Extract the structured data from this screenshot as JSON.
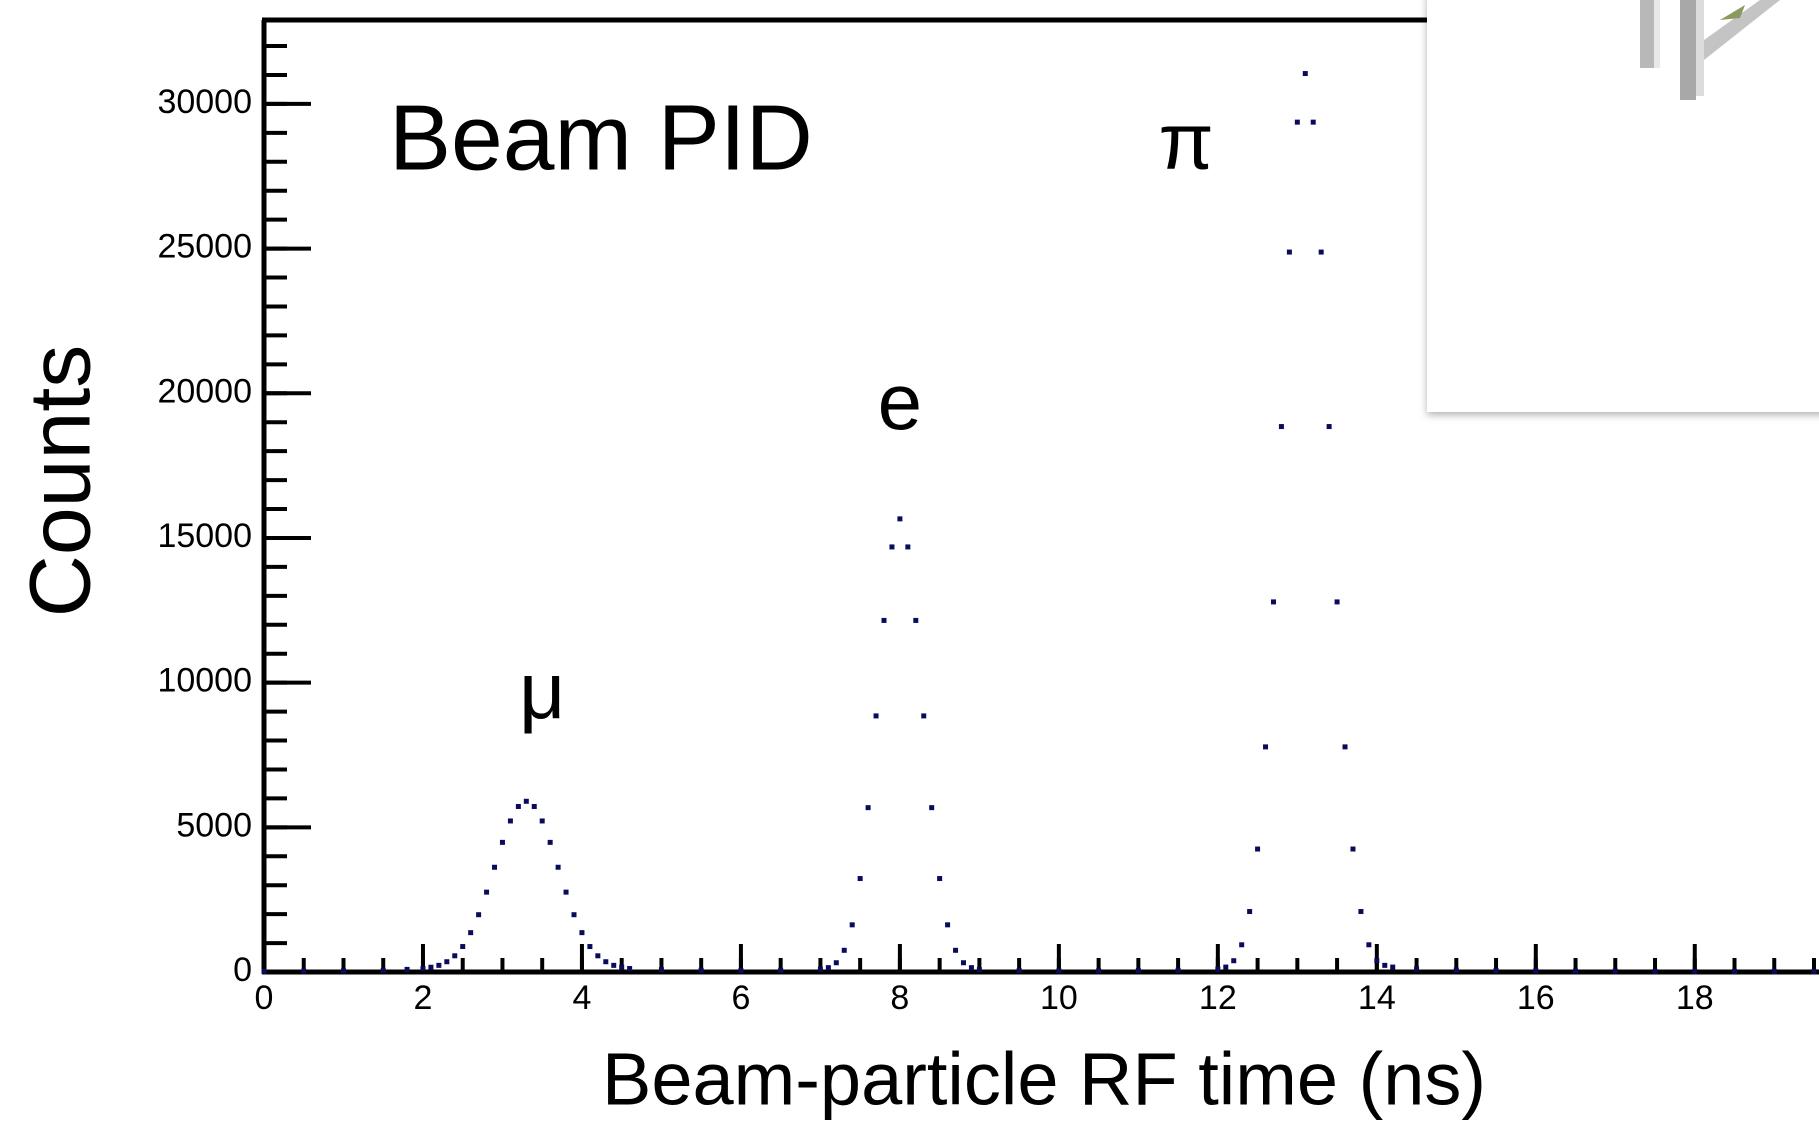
{
  "chart_data": {
    "type": "scatter",
    "title": "Beam PID",
    "x_label": "Beam-particle RF time (ns)",
    "y_label": "Counts",
    "annotations": [
      {
        "text": "μ",
        "x": 3.5,
        "y": 9500
      },
      {
        "text": "e",
        "x": 8.0,
        "y": 19500
      },
      {
        "text": "π",
        "x": 11.6,
        "y": 28500
      }
    ],
    "x": [
      0,
      0.5,
      1,
      1.5,
      1.8,
      2.0,
      2.1,
      2.2,
      2.3,
      2.4,
      2.5,
      2.6,
      2.7,
      2.8,
      2.9,
      3.0,
      3.1,
      3.2,
      3.3,
      3.4,
      3.5,
      3.6,
      3.7,
      3.8,
      3.9,
      4.0,
      4.1,
      4.2,
      4.3,
      4.4,
      4.5,
      4.6,
      5.0,
      5.5,
      6.0,
      6.5,
      7.0,
      7.1,
      7.2,
      7.3,
      7.4,
      7.5,
      7.6,
      7.7,
      7.8,
      7.9,
      8.0,
      8.1,
      8.2,
      8.3,
      8.4,
      8.5,
      8.6,
      8.7,
      8.8,
      8.9,
      9.0,
      9.5,
      10,
      10.5,
      11,
      11.5,
      12.0,
      12.1,
      12.2,
      12.3,
      12.4,
      12.5,
      12.6,
      12.7,
      12.8,
      12.9,
      13.0,
      13.1,
      13.2,
      13.3,
      13.4,
      13.5,
      13.6,
      13.7,
      13.8,
      13.9,
      14.0,
      14.1,
      14.2,
      14.5,
      15,
      15.5,
      16,
      16.5,
      17,
      17.5,
      18,
      18.5,
      19,
      19.5
    ],
    "series": [
      {
        "color": "#0b0b5c",
        "values": [
          20,
          30,
          40,
          60,
          90,
          120,
          165,
          230,
          355,
          560,
          880,
          1360,
          1980,
          2760,
          3620,
          4480,
          5220,
          5720,
          5900,
          5720,
          5220,
          4480,
          3620,
          2760,
          1980,
          1360,
          880,
          560,
          355,
          230,
          165,
          120,
          80,
          60,
          50,
          60,
          100,
          150,
          320,
          750,
          1630,
          3230,
          5680,
          8850,
          12150,
          14690,
          15660,
          14690,
          12150,
          8850,
          5680,
          3230,
          1630,
          750,
          320,
          150,
          80,
          50,
          40,
          40,
          50,
          60,
          100,
          170,
          390,
          940,
          2090,
          4250,
          7780,
          12790,
          18850,
          24880,
          29370,
          31050,
          29370,
          24880,
          18850,
          12790,
          7780,
          4250,
          2090,
          940,
          390,
          230,
          170,
          110,
          70,
          50,
          40,
          30,
          30,
          20,
          20,
          20,
          20,
          20
        ]
      }
    ],
    "xlim": [
      0,
      19.5
    ],
    "ylim": [
      0,
      32900
    ],
    "xticks": [
      0,
      2,
      4,
      6,
      8,
      10,
      12,
      14,
      16,
      18
    ],
    "yticks": [
      0,
      5000,
      10000,
      15000,
      20000,
      25000,
      30000
    ],
    "xminor": 0.5,
    "yminor": 1000
  }
}
